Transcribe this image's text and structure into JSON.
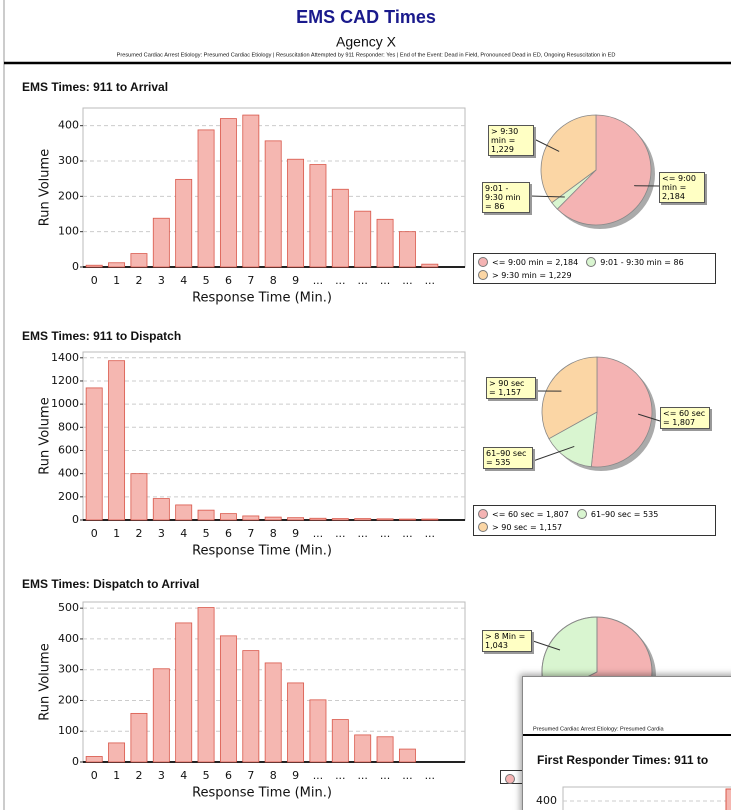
{
  "header": {
    "title": "EMS CAD Times",
    "subtitle": "Agency X",
    "filters": "Presumed Cardiac Arrest Etiology: Presumed Cardiac Etiology | Resuscitation Attempted by 911 Responder: Yes | End of the Event: Dead in Field, Pronounced Dead in ED, Ongoing Resuscitation in ED"
  },
  "chart_data": [
    {
      "type": "bar",
      "title": "EMS Times: 911 to Arrival",
      "xlabel": "Response Time (Min.)",
      "ylabel": "Run Volume",
      "categories": [
        "0",
        "1",
        "2",
        "3",
        "4",
        "5",
        "6",
        "7",
        "8",
        "9",
        "...",
        "...",
        "...",
        "...",
        "...",
        "..."
      ],
      "values": [
        5,
        12,
        38,
        138,
        248,
        388,
        420,
        430,
        357,
        305,
        290,
        220,
        158,
        135,
        100,
        8
      ],
      "color": "#f5b7b1",
      "edge_color": "#d9574a",
      "ylim": [
        0,
        450
      ],
      "yticks": [
        0,
        100,
        200,
        300,
        400
      ],
      "grid": true
    },
    {
      "type": "pie",
      "categories": [
        "<= 9:00 min = 2,184",
        "9:01 - 9:30 min = 86",
        "> 9:30 min = 1,229"
      ],
      "values": [
        2184,
        86,
        1229
      ],
      "colors": [
        "#f4b3b3",
        "#d9f5d0",
        "#fbd6a5"
      ],
      "legend": true
    },
    {
      "type": "bar",
      "title": "EMS Times: 911 to Dispatch",
      "xlabel": "Response Time (Min.)",
      "ylabel": "Run Volume",
      "categories": [
        "0",
        "1",
        "2",
        "3",
        "4",
        "5",
        "6",
        "7",
        "8",
        "9",
        "...",
        "...",
        "...",
        "...",
        "...",
        "..."
      ],
      "values": [
        1140,
        1375,
        400,
        185,
        130,
        85,
        55,
        35,
        25,
        20,
        15,
        12,
        12,
        10,
        8,
        8
      ],
      "color": "#f5b7b1",
      "edge_color": "#d9574a",
      "ylim": [
        0,
        1450
      ],
      "yticks": [
        0,
        200,
        400,
        600,
        800,
        1000,
        1200,
        1400
      ],
      "grid": true
    },
    {
      "type": "pie",
      "categories": [
        "<= 60 sec = 1,807",
        "61–90 sec = 535",
        "> 90 sec = 1,157"
      ],
      "values": [
        1807,
        535,
        1157
      ],
      "colors": [
        "#f4b3b3",
        "#d9f5d0",
        "#fbd6a5"
      ],
      "legend": true
    },
    {
      "type": "bar",
      "title": "EMS Times: Dispatch to Arrival",
      "xlabel": "Response Time (Min.)",
      "ylabel": "Run Volume",
      "categories": [
        "0",
        "1",
        "2",
        "3",
        "4",
        "5",
        "6",
        "7",
        "8",
        "9",
        "...",
        "...",
        "...",
        "...",
        "...",
        "..."
      ],
      "values": [
        18,
        62,
        158,
        303,
        452,
        502,
        410,
        362,
        322,
        257,
        202,
        138,
        88,
        82,
        42,
        null
      ],
      "color": "#f5b7b1",
      "edge_color": "#d9574a",
      "ylim": [
        0,
        520
      ],
      "yticks": [
        0,
        100,
        200,
        300,
        400,
        500
      ],
      "grid": true
    },
    {
      "type": "pie",
      "categories": [
        "> 8 Min = 1,043"
      ]
    }
  ],
  "overlay_window": {
    "filters": "Presumed Cardiac Arrest Etiology: Presumed Cardia",
    "heading": "First Responder Times: 911 to",
    "tick": "400"
  }
}
